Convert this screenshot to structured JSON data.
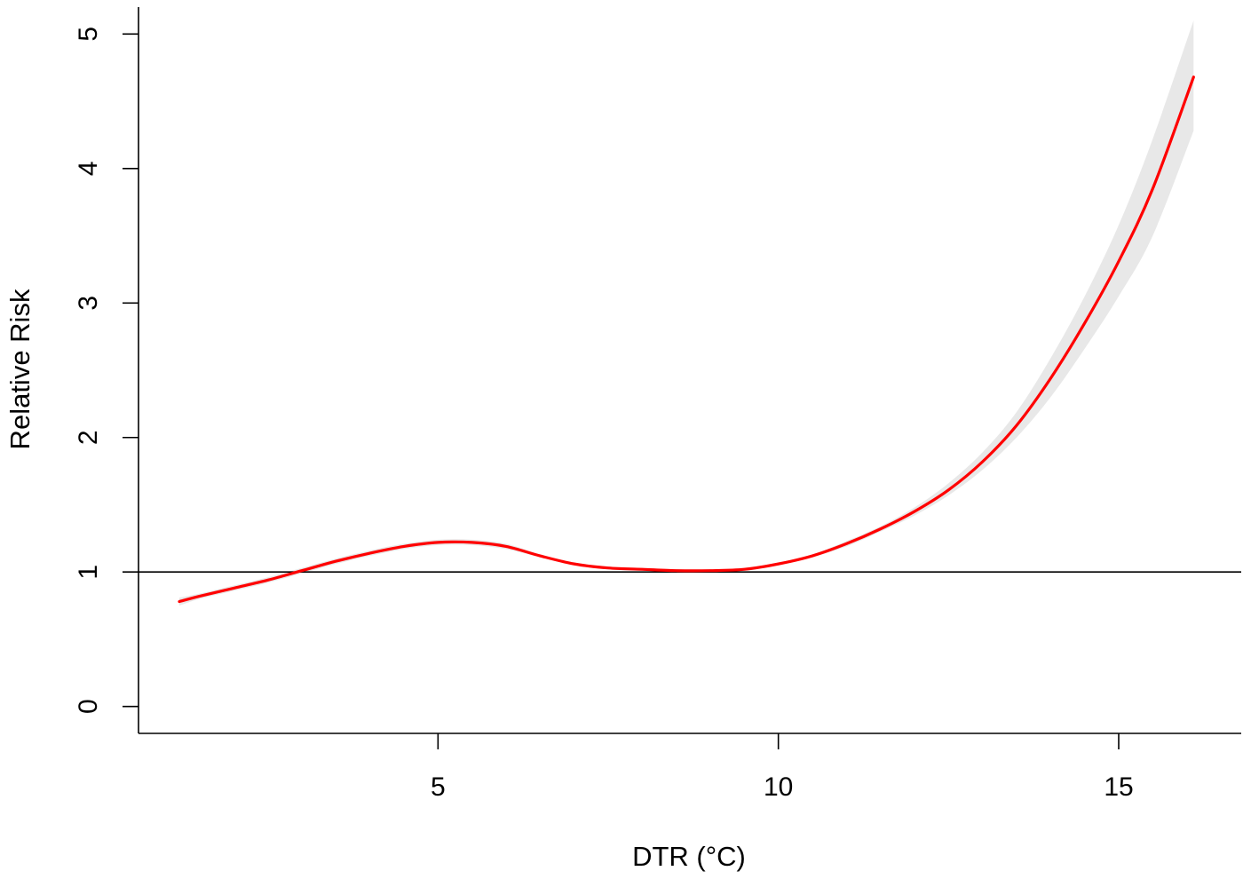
{
  "chart_data": {
    "type": "line",
    "title": "",
    "xlabel": "DTR (°C)",
    "ylabel": "Relative Risk",
    "xlim": [
      0.6,
      16.8
    ],
    "ylim": [
      -0.2,
      5.2
    ],
    "xticks": [
      5,
      10,
      15
    ],
    "yticks": [
      0,
      1,
      2,
      3,
      4,
      5
    ],
    "grid": false,
    "legend": "none",
    "reference_line": {
      "y": 1,
      "color": "#000000"
    },
    "series": [
      {
        "color": "#ff0000",
        "band_color": "#e8e8e8",
        "x": [
          1.2,
          1.5,
          2.0,
          2.5,
          3.0,
          3.5,
          4.0,
          4.5,
          5.0,
          5.5,
          6.0,
          6.5,
          7.0,
          7.5,
          8.0,
          8.5,
          9.0,
          9.5,
          10.0,
          10.5,
          11.0,
          11.5,
          12.0,
          12.5,
          13.0,
          13.5,
          14.0,
          14.5,
          15.0,
          15.5,
          16.1
        ],
        "y": [
          0.78,
          0.82,
          0.88,
          0.94,
          1.01,
          1.08,
          1.14,
          1.19,
          1.22,
          1.22,
          1.19,
          1.12,
          1.06,
          1.03,
          1.02,
          1.01,
          1.01,
          1.02,
          1.06,
          1.12,
          1.21,
          1.32,
          1.45,
          1.61,
          1.82,
          2.09,
          2.44,
          2.85,
          3.31,
          3.85,
          4.68
        ],
        "lower": [
          0.75,
          0.8,
          0.86,
          0.92,
          0.99,
          1.06,
          1.12,
          1.17,
          1.2,
          1.2,
          1.17,
          1.11,
          1.05,
          1.02,
          1.01,
          1.0,
          1.0,
          1.01,
          1.05,
          1.11,
          1.19,
          1.3,
          1.42,
          1.57,
          1.76,
          2.0,
          2.3,
          2.66,
          3.05,
          3.5,
          4.28
        ],
        "upper": [
          0.81,
          0.84,
          0.9,
          0.96,
          1.03,
          1.1,
          1.16,
          1.21,
          1.24,
          1.24,
          1.21,
          1.13,
          1.07,
          1.04,
          1.03,
          1.02,
          1.02,
          1.03,
          1.07,
          1.13,
          1.23,
          1.34,
          1.48,
          1.66,
          1.89,
          2.19,
          2.59,
          3.05,
          3.58,
          4.22,
          5.1
        ]
      }
    ]
  }
}
